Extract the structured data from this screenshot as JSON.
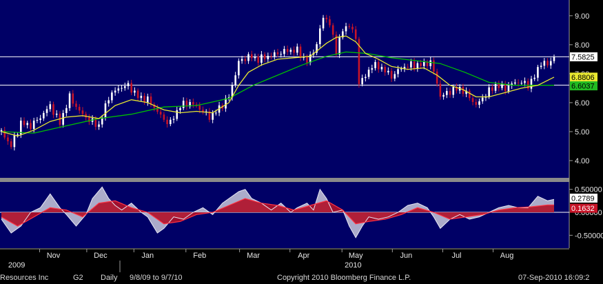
{
  "chart_data": [
    {
      "type": "candlestick",
      "ylim": [
        3.5,
        9.4
      ],
      "yticks": [
        "4.00",
        "5.00",
        "6.00",
        "7.00",
        "8.00",
        "9.00"
      ],
      "grid": false,
      "months": [
        {
          "label": "Nov",
          "day": 32
        },
        {
          "label": "Dec",
          "day": 61
        },
        {
          "label": "Jan",
          "day": 90
        },
        {
          "label": "Feb",
          "day": 122
        },
        {
          "label": "Mar",
          "day": 155
        },
        {
          "label": "Apr",
          "day": 186
        },
        {
          "label": "May",
          "day": 218
        },
        {
          "label": "Jun",
          "day": 249
        },
        {
          "label": "Jul",
          "day": 280
        },
        {
          "label": "Aug",
          "day": 311
        }
      ],
      "years": [
        {
          "label": "2009",
          "day": 6
        },
        {
          "label": "2010",
          "day": 213
        }
      ],
      "horizontal_lines": [
        7.5825,
        6.6037
      ],
      "last_price": 7.5825,
      "ma_fast_last": 6.8806,
      "ma_slow_last": 6.6037,
      "close": [
        [
          0,
          5.0
        ],
        [
          6,
          4.5
        ],
        [
          12,
          5.3
        ],
        [
          18,
          5.2
        ],
        [
          24,
          5.5
        ],
        [
          30,
          5.9
        ],
        [
          36,
          5.3
        ],
        [
          42,
          6.2
        ],
        [
          48,
          5.7
        ],
        [
          54,
          5.4
        ],
        [
          60,
          5.2
        ],
        [
          66,
          6.2
        ],
        [
          72,
          6.5
        ],
        [
          78,
          6.6
        ],
        [
          84,
          6.2
        ],
        [
          90,
          6.1
        ],
        [
          96,
          5.7
        ],
        [
          100,
          5.4
        ],
        [
          104,
          5.3
        ],
        [
          110,
          5.9
        ],
        [
          116,
          6.0
        ],
        [
          122,
          5.8
        ],
        [
          128,
          5.5
        ],
        [
          134,
          5.8
        ],
        [
          140,
          6.2
        ],
        [
          146,
          7.4
        ],
        [
          152,
          7.6
        ],
        [
          158,
          7.5
        ],
        [
          164,
          7.6
        ],
        [
          170,
          7.7
        ],
        [
          176,
          7.8
        ],
        [
          182,
          7.8
        ],
        [
          188,
          7.4
        ],
        [
          194,
          8.0
        ],
        [
          198,
          9.0
        ],
        [
          202,
          8.7
        ],
        [
          206,
          7.8
        ],
        [
          210,
          8.5
        ],
        [
          214,
          8.7
        ],
        [
          218,
          8.2
        ],
        [
          220,
          6.7
        ],
        [
          224,
          6.9
        ],
        [
          228,
          7.3
        ],
        [
          234,
          7.2
        ],
        [
          240,
          6.9
        ],
        [
          246,
          7.2
        ],
        [
          252,
          7.3
        ],
        [
          258,
          7.3
        ],
        [
          264,
          7.4
        ],
        [
          268,
          6.7
        ],
        [
          270,
          6.2
        ],
        [
          276,
          6.4
        ],
        [
          282,
          6.5
        ],
        [
          288,
          6.2
        ],
        [
          292,
          5.9
        ],
        [
          298,
          6.3
        ],
        [
          304,
          6.6
        ],
        [
          310,
          6.5
        ],
        [
          316,
          6.7
        ],
        [
          320,
          6.7
        ],
        [
          324,
          6.6
        ],
        [
          328,
          6.9
        ],
        [
          332,
          7.4
        ],
        [
          336,
          7.3
        ],
        [
          340,
          7.6
        ]
      ],
      "ma_fast": [
        [
          0,
          5.0
        ],
        [
          10,
          4.85
        ],
        [
          20,
          5.05
        ],
        [
          30,
          5.35
        ],
        [
          40,
          5.5
        ],
        [
          50,
          5.55
        ],
        [
          60,
          5.45
        ],
        [
          70,
          5.9
        ],
        [
          80,
          6.1
        ],
        [
          90,
          6.0
        ],
        [
          100,
          5.75
        ],
        [
          110,
          5.65
        ],
        [
          120,
          5.7
        ],
        [
          130,
          5.65
        ],
        [
          140,
          6.0
        ],
        [
          146,
          6.6
        ],
        [
          152,
          7.05
        ],
        [
          160,
          7.3
        ],
        [
          170,
          7.5
        ],
        [
          180,
          7.55
        ],
        [
          190,
          7.6
        ],
        [
          200,
          8.05
        ],
        [
          206,
          8.25
        ],
        [
          212,
          8.3
        ],
        [
          218,
          8.1
        ],
        [
          224,
          7.7
        ],
        [
          232,
          7.5
        ],
        [
          240,
          7.25
        ],
        [
          250,
          7.15
        ],
        [
          260,
          7.2
        ],
        [
          268,
          6.95
        ],
        [
          276,
          6.6
        ],
        [
          284,
          6.45
        ],
        [
          292,
          6.2
        ],
        [
          300,
          6.2
        ],
        [
          310,
          6.35
        ],
        [
          320,
          6.5
        ],
        [
          330,
          6.6
        ],
        [
          340,
          6.88
        ]
      ],
      "ma_slow": [
        [
          0,
          5.0
        ],
        [
          20,
          4.95
        ],
        [
          40,
          5.2
        ],
        [
          60,
          5.45
        ],
        [
          80,
          5.6
        ],
        [
          100,
          5.85
        ],
        [
          120,
          5.9
        ],
        [
          140,
          6.15
        ],
        [
          155,
          6.6
        ],
        [
          170,
          6.95
        ],
        [
          185,
          7.3
        ],
        [
          200,
          7.6
        ],
        [
          212,
          7.75
        ],
        [
          225,
          7.7
        ],
        [
          240,
          7.55
        ],
        [
          255,
          7.45
        ],
        [
          270,
          7.35
        ],
        [
          285,
          7.05
        ],
        [
          300,
          6.7
        ],
        [
          315,
          6.6
        ],
        [
          330,
          6.6
        ],
        [
          340,
          6.6
        ]
      ]
    },
    {
      "type": "area",
      "ylim": [
        -0.75,
        0.6
      ],
      "yticks": [
        "0.50000",
        "0.00000",
        "-0.50000"
      ],
      "main_last": 0.2789,
      "signal_last": 0.1632,
      "main": [
        [
          0,
          -0.15
        ],
        [
          6,
          -0.45
        ],
        [
          12,
          -0.3
        ],
        [
          18,
          0.0
        ],
        [
          24,
          0.1
        ],
        [
          30,
          0.4
        ],
        [
          36,
          0.1
        ],
        [
          40,
          -0.05
        ],
        [
          46,
          -0.3
        ],
        [
          52,
          -0.05
        ],
        [
          56,
          0.3
        ],
        [
          62,
          0.55
        ],
        [
          66,
          0.3
        ],
        [
          70,
          0.15
        ],
        [
          74,
          0.05
        ],
        [
          80,
          0.2
        ],
        [
          86,
          0.0
        ],
        [
          90,
          -0.1
        ],
        [
          96,
          -0.45
        ],
        [
          100,
          -0.35
        ],
        [
          106,
          -0.1
        ],
        [
          112,
          -0.15
        ],
        [
          118,
          0.0
        ],
        [
          124,
          0.1
        ],
        [
          130,
          -0.05
        ],
        [
          136,
          0.2
        ],
        [
          140,
          0.3
        ],
        [
          146,
          0.45
        ],
        [
          150,
          0.5
        ],
        [
          154,
          0.3
        ],
        [
          160,
          0.2
        ],
        [
          166,
          0.05
        ],
        [
          172,
          0.2
        ],
        [
          178,
          0.0
        ],
        [
          182,
          0.1
        ],
        [
          188,
          0.2
        ],
        [
          192,
          0.05
        ],
        [
          196,
          0.5
        ],
        [
          200,
          0.3
        ],
        [
          204,
          0.0
        ],
        [
          210,
          0.05
        ],
        [
          214,
          -0.3
        ],
        [
          218,
          -0.55
        ],
        [
          222,
          -0.3
        ],
        [
          226,
          -0.1
        ],
        [
          232,
          -0.15
        ],
        [
          238,
          -0.1
        ],
        [
          244,
          0.0
        ],
        [
          250,
          0.15
        ],
        [
          256,
          0.2
        ],
        [
          262,
          0.1
        ],
        [
          266,
          -0.1
        ],
        [
          270,
          -0.35
        ],
        [
          276,
          -0.15
        ],
        [
          282,
          -0.05
        ],
        [
          288,
          -0.15
        ],
        [
          294,
          -0.1
        ],
        [
          300,
          0.0
        ],
        [
          306,
          0.1
        ],
        [
          312,
          0.15
        ],
        [
          318,
          0.1
        ],
        [
          324,
          0.1
        ],
        [
          330,
          0.35
        ],
        [
          336,
          0.25
        ],
        [
          340,
          0.28
        ]
      ],
      "signal": [
        [
          0,
          -0.1
        ],
        [
          10,
          -0.3
        ],
        [
          20,
          -0.1
        ],
        [
          30,
          0.1
        ],
        [
          40,
          0.05
        ],
        [
          50,
          -0.1
        ],
        [
          60,
          0.2
        ],
        [
          70,
          0.25
        ],
        [
          80,
          0.1
        ],
        [
          90,
          0.0
        ],
        [
          100,
          -0.25
        ],
        [
          110,
          -0.2
        ],
        [
          120,
          -0.05
        ],
        [
          130,
          0.0
        ],
        [
          140,
          0.15
        ],
        [
          150,
          0.3
        ],
        [
          160,
          0.2
        ],
        [
          170,
          0.15
        ],
        [
          180,
          0.05
        ],
        [
          190,
          0.15
        ],
        [
          200,
          0.25
        ],
        [
          210,
          0.05
        ],
        [
          218,
          -0.25
        ],
        [
          226,
          -0.2
        ],
        [
          236,
          -0.15
        ],
        [
          246,
          -0.05
        ],
        [
          256,
          0.1
        ],
        [
          266,
          0.0
        ],
        [
          276,
          -0.15
        ],
        [
          286,
          -0.1
        ],
        [
          296,
          -0.05
        ],
        [
          306,
          0.05
        ],
        [
          316,
          0.1
        ],
        [
          326,
          0.12
        ],
        [
          336,
          0.16
        ],
        [
          340,
          0.16
        ]
      ]
    }
  ],
  "footer": {
    "security": "Resources Inc",
    "page": "G2",
    "period": "Daily",
    "range": "9/8/09 to 9/7/10",
    "copyright": "Copyright 2010 Bloomberg Finance L.P.",
    "timestamp": "07-Sep-2010 16:09:2"
  },
  "colors": {
    "panel_bg": "#000066",
    "ma_fast": "#e8e830",
    "ma_slow": "#00c000",
    "up_candle": "#ffffff",
    "down_candle": "#c81428",
    "macd_fill": "#c9c9dc",
    "signal_fill": "#b01028",
    "last_price_box": "#ffffff",
    "ma_fast_box": "#e8e830",
    "ma_slow_box": "#22bb22"
  }
}
